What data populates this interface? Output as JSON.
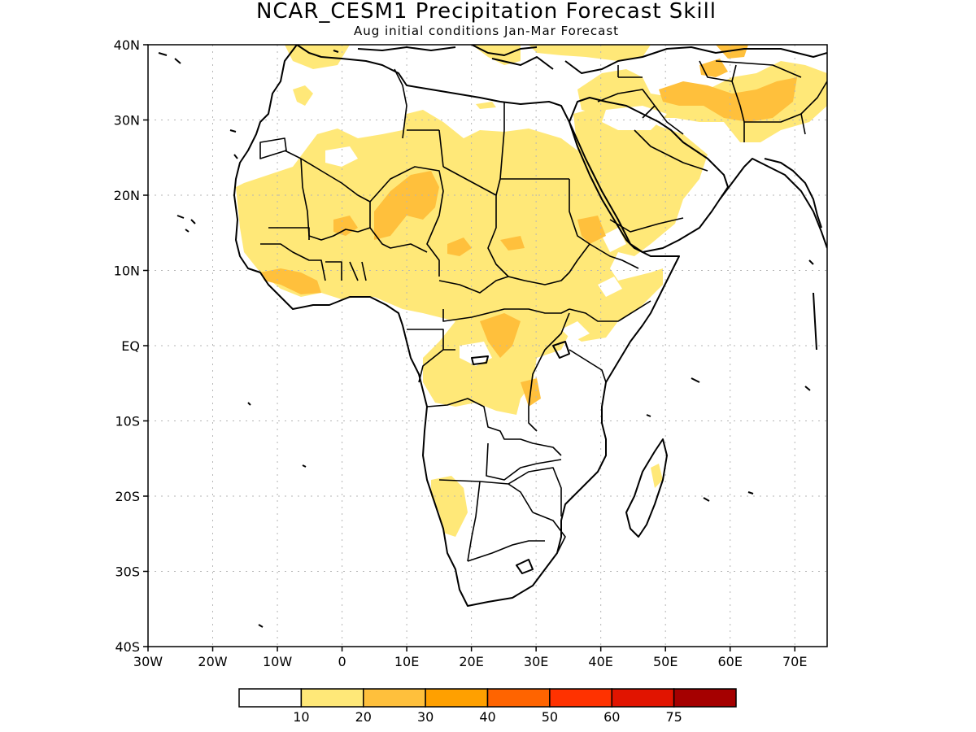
{
  "title": "NCAR_CESM1 Precipitation Forecast Skill",
  "subtitle": "Aug initial conditions   Jan-Mar Forecast",
  "map": {
    "lon_range": [
      -30,
      75
    ],
    "lat_range": [
      -40,
      40
    ],
    "lat_ticks": [
      {
        "value": 40,
        "label": "40N"
      },
      {
        "value": 30,
        "label": "30N"
      },
      {
        "value": 20,
        "label": "20N"
      },
      {
        "value": 10,
        "label": "10N"
      },
      {
        "value": 0,
        "label": "EQ"
      },
      {
        "value": -10,
        "label": "10S"
      },
      {
        "value": -20,
        "label": "20S"
      },
      {
        "value": -30,
        "label": "30S"
      },
      {
        "value": -40,
        "label": "40S"
      }
    ],
    "lon_ticks": [
      {
        "value": -30,
        "label": "30W"
      },
      {
        "value": -20,
        "label": "20W"
      },
      {
        "value": -10,
        "label": "10W"
      },
      {
        "value": 0,
        "label": "0"
      },
      {
        "value": 10,
        "label": "10E"
      },
      {
        "value": 20,
        "label": "20E"
      },
      {
        "value": 30,
        "label": "30E"
      },
      {
        "value": 40,
        "label": "40E"
      },
      {
        "value": 50,
        "label": "50E"
      },
      {
        "value": 60,
        "label": "60E"
      },
      {
        "value": 70,
        "label": "70E"
      }
    ],
    "grid": "dotted"
  },
  "colorbar": {
    "colors": [
      "#ffffff",
      "#ffe878",
      "#ffc03c",
      "#ffa000",
      "#ff6400",
      "#ff3200",
      "#e11400",
      "#a50000"
    ],
    "labels": [
      "10",
      "20",
      "30",
      "40",
      "50",
      "60",
      "75"
    ]
  }
}
